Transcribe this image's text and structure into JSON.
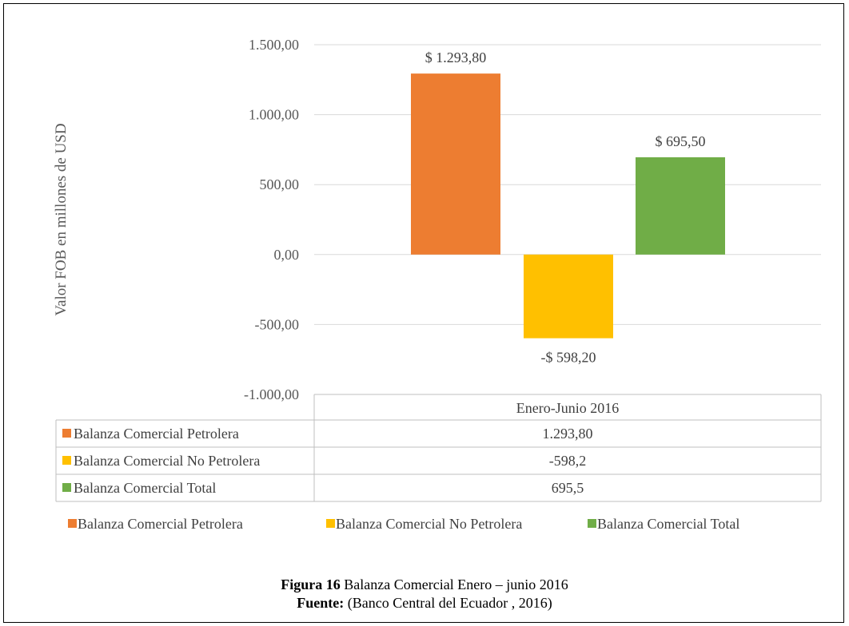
{
  "chart_data": {
    "type": "bar",
    "ylabel": "Valor FOB en millones de  USD",
    "ylim": [
      -1000,
      1500
    ],
    "yticks": [
      1500,
      1000,
      500,
      0,
      -500,
      -1000
    ],
    "ytick_labels": [
      "1.500,00",
      "1.000,00",
      "500,00",
      "0,00",
      "-500,00",
      "-1.000,00"
    ],
    "category": "Enero-Junio 2016",
    "series": [
      {
        "name": "Balanza Comercial Petrolera",
        "value": 1293.8,
        "label": "$ 1.293,80",
        "table_value": "1.293,80",
        "color": "#ED7D31"
      },
      {
        "name": "Balanza Comercial No Petrolera",
        "value": -598.2,
        "label": "-$ 598,20",
        "table_value": "-598,2",
        "color": "#FFC000"
      },
      {
        "name": "Balanza Comercial Total",
        "value": 695.5,
        "label": "$ 695,50",
        "table_value": "695,5",
        "color": "#70AD47"
      }
    ],
    "grid": true,
    "legend": "bottom"
  },
  "caption": {
    "figure_label": "Figura 16",
    "figure_text": " Balanza Comercial Enero – junio 2016",
    "source_label": "Fuente:",
    "source_text": " (Banco Central del Ecuador , 2016)"
  }
}
